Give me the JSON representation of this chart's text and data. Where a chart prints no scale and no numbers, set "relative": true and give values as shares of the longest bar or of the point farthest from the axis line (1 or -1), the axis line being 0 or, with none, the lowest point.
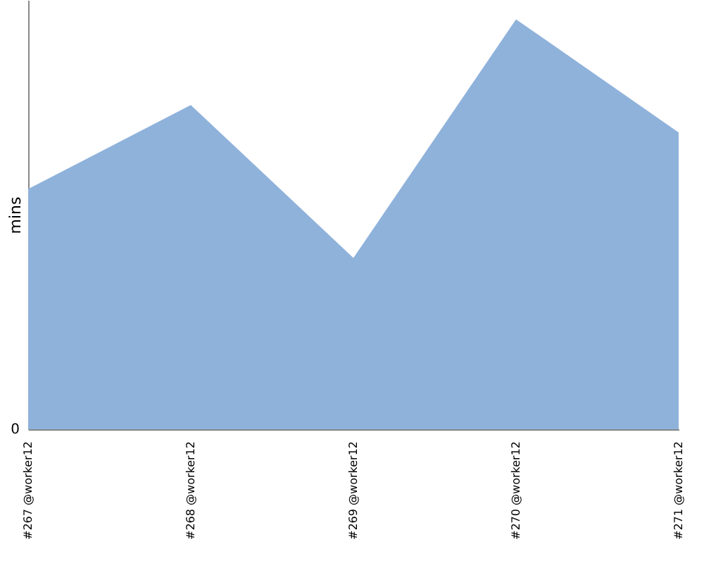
{
  "chart_data": {
    "type": "area",
    "relative": true,
    "ylabel": "mins",
    "categories": [
      "#267 @worker12",
      "#268 @worker12",
      "#269 @worker12",
      "#270 @worker12",
      "#271 @worker12"
    ],
    "series": [
      {
        "color": "#8fb2db",
        "values": [
          0.586,
          0.791,
          0.418,
          1,
          0.724
        ]
      }
    ],
    "annotations": [
      "0"
    ],
    "grid": false
  }
}
